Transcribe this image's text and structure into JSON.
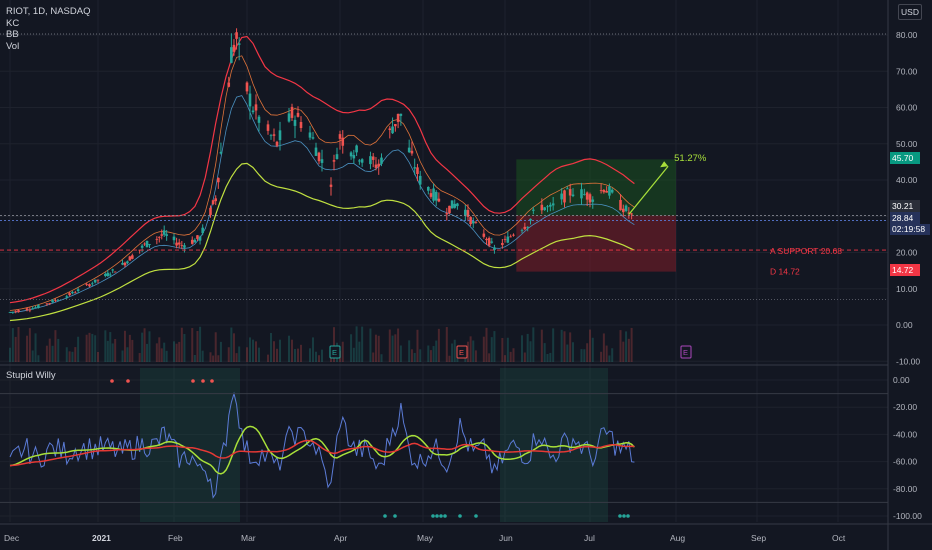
{
  "legend": {
    "symbol_line": "RIOT, 1D, NASDAQ",
    "indicators": [
      "KC",
      "BB",
      "Vol"
    ]
  },
  "currency_button": "USD",
  "oscillator": {
    "title": "Stupid Willy",
    "y_ticks": [
      "0.00",
      "-20.00",
      "-40.00",
      "-60.00",
      "-80.00",
      "-100.00"
    ]
  },
  "price_axis": {
    "ticks": [
      "80.00",
      "70.00",
      "60.00",
      "50.00",
      "40.00",
      "30.00",
      "20.00",
      "10.00",
      "0.00",
      "-10.00"
    ]
  },
  "time_axis": {
    "labels": [
      "Dec",
      "2021",
      "Feb",
      "Mar",
      "Apr",
      "May",
      "Jun",
      "Jul",
      "Aug",
      "Sep",
      "Oct"
    ]
  },
  "tags": {
    "target": {
      "text": "45.70",
      "color": "#089981"
    },
    "current_high": {
      "text": "30.21",
      "color": "#2a2e39"
    },
    "last_price": {
      "text": "28.84",
      "color": "#26325a"
    },
    "countdown": {
      "text": "02:19:58",
      "color": "#26325a"
    },
    "stop": {
      "text": "14.72",
      "color": "#f23645"
    }
  },
  "annotations": {
    "percent": "51.27%",
    "support": "A SUPPORT 20.68",
    "d_level": "D 14.72",
    "earnings_marks": [
      "E",
      "E",
      "E"
    ]
  },
  "colors": {
    "background": "#131722",
    "up": "#26a69a",
    "down": "#ef5350",
    "upper_band": "#f23645",
    "lower_band": "#c0e040",
    "osc_fast": "#5b7bd6",
    "osc_signal": "#a8e03a",
    "osc_slow": "#e53935",
    "profit_zone": "#1b5e20",
    "loss_zone": "#7f1d28"
  },
  "chart_data": {
    "type": "candlestick",
    "title": "RIOT, 1D, NASDAQ",
    "x_labels": [
      "Dec",
      "2021",
      "Feb",
      "Mar",
      "Apr",
      "May",
      "Jun",
      "Jul",
      "Aug",
      "Sep",
      "Oct"
    ],
    "price_ylim": [
      -10,
      82
    ],
    "osc_ylim": [
      -105,
      5
    ],
    "monthly_close_estimates": [
      {
        "month": "Dec",
        "close": 15.0
      },
      {
        "month": "Jan",
        "close": 25.0
      },
      {
        "month": "Feb",
        "close": 46.0
      },
      {
        "month": "Mar",
        "close": 50.0
      },
      {
        "month": "Apr",
        "close": 38.0
      },
      {
        "month": "May",
        "close": 27.0
      },
      {
        "month": "Jun",
        "close": 35.0
      },
      {
        "month": "Jul",
        "close": 28.84
      }
    ],
    "key_points": {
      "peak_high": 79.5,
      "last_close": 28.84,
      "target": 45.7,
      "support": 20.68,
      "stop": 14.72,
      "projected_move_pct": 51.27
    }
  }
}
